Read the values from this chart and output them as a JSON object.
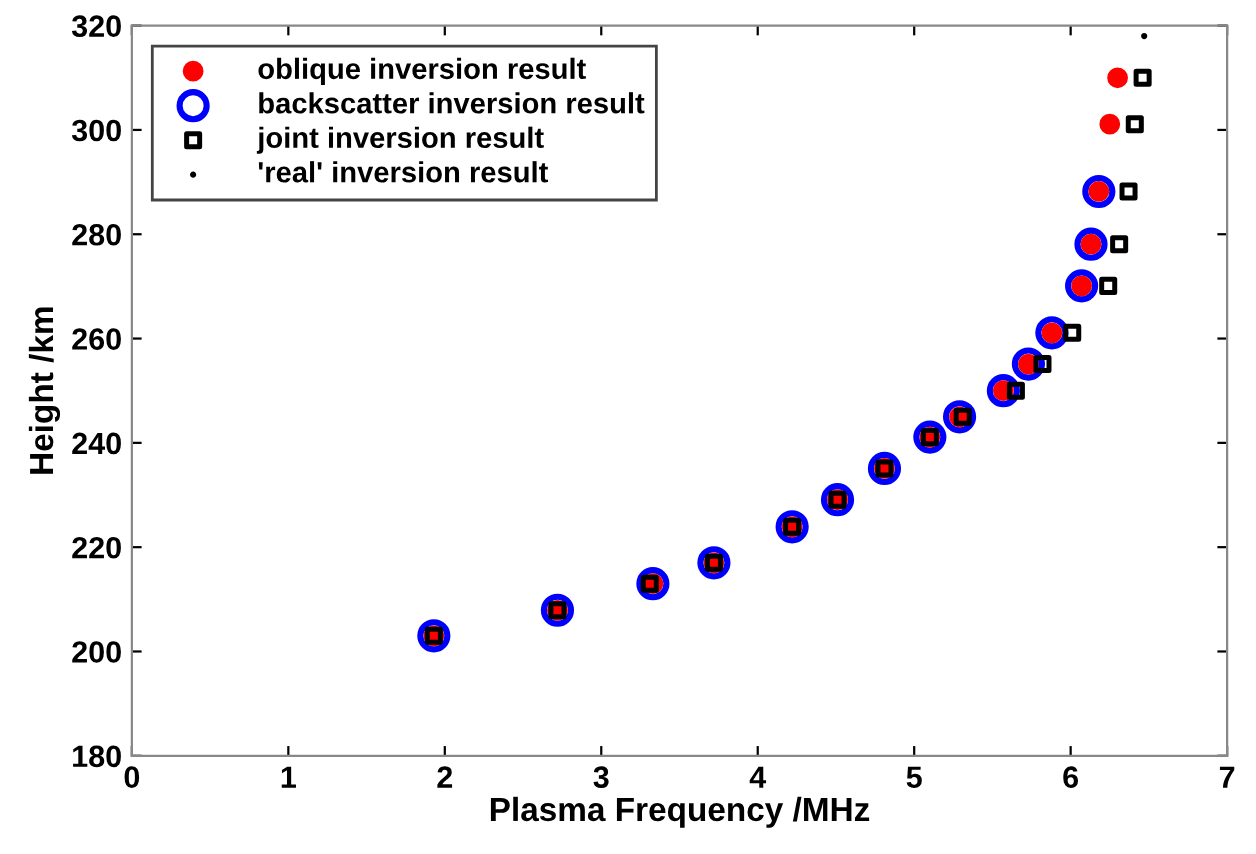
{
  "chart_data": {
    "type": "scatter",
    "xlabel": "Plasma Frequency /MHz",
    "ylabel": "Height /km",
    "xlim": [
      0,
      7
    ],
    "ylim": [
      180,
      320
    ],
    "xticks": [
      0,
      1,
      2,
      3,
      4,
      5,
      6,
      7
    ],
    "yticks": [
      180,
      200,
      220,
      240,
      260,
      280,
      300,
      320
    ],
    "grid": false,
    "legend": "top left",
    "series": [
      {
        "name": "oblique inversion result",
        "color": "#ff0000",
        "marker": "circle",
        "x": [
          1.93,
          2.72,
          3.33,
          3.72,
          4.22,
          4.51,
          4.81,
          5.1,
          5.29,
          5.57,
          5.73,
          5.88,
          6.07,
          6.13,
          6.18,
          6.25,
          6.3
        ],
        "values": [
          203.0,
          207.9,
          213.0,
          217.0,
          223.9,
          229.1,
          235.1,
          241.1,
          245.0,
          250.0,
          255.1,
          261.1,
          270.1,
          278.1,
          288.2,
          301.1,
          310.0
        ]
      },
      {
        "name": "backscatter inversion result",
        "color": "#0000ff",
        "marker": "circle",
        "x": [
          1.93,
          2.72,
          3.33,
          3.72,
          4.22,
          4.51,
          4.81,
          5.1,
          5.29,
          5.57,
          5.73,
          5.88,
          6.07,
          6.13,
          6.18
        ],
        "values": [
          203.0,
          207.9,
          213.0,
          217.0,
          223.9,
          229.1,
          235.1,
          241.1,
          245.0,
          250.0,
          255.1,
          261.1,
          270.1,
          278.1,
          288.2
        ]
      },
      {
        "name": "joint inversion result",
        "color": "#000000",
        "marker": "square",
        "x": [
          1.93,
          2.72,
          3.31,
          3.72,
          4.22,
          4.51,
          4.81,
          5.1,
          5.31,
          5.65,
          5.82,
          6.01,
          6.24,
          6.31,
          6.37,
          6.41,
          6.46
        ],
        "values": [
          203.0,
          207.9,
          213.0,
          217.0,
          223.9,
          229.1,
          235.1,
          241.1,
          245.0,
          250.0,
          255.1,
          261.1,
          270.1,
          278.1,
          288.2,
          301.1,
          310.0
        ]
      },
      {
        "name": "'real' inversion result",
        "color": "#000000",
        "marker": "point",
        "x": [
          6.47
        ],
        "values": [
          318.0
        ]
      }
    ]
  }
}
